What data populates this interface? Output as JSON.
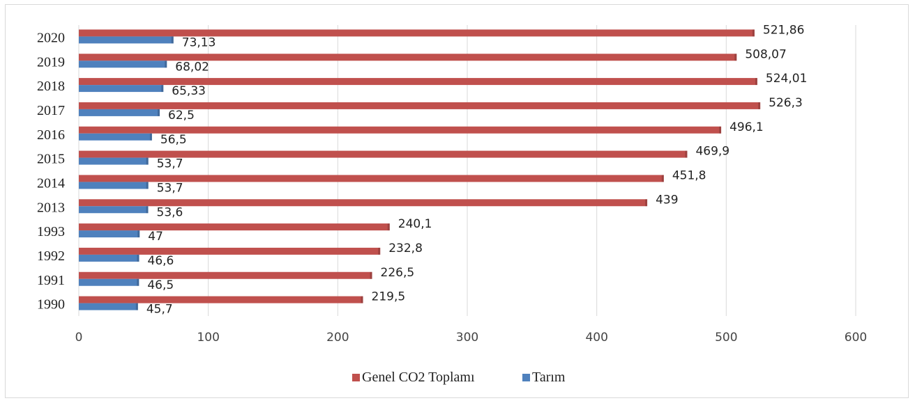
{
  "chart_data": {
    "type": "bar",
    "orientation": "horizontal",
    "categories": [
      "1990",
      "1991",
      "1992",
      "1993",
      "2013",
      "2014",
      "2015",
      "2016",
      "2017",
      "2018",
      "2019",
      "2020"
    ],
    "series": [
      {
        "name": "Genel CO2 Toplamı",
        "color": "#c0504d",
        "values": [
          219.5,
          226.5,
          232.8,
          240.1,
          439,
          451.8,
          469.9,
          496.1,
          526.3,
          524.01,
          508.07,
          521.86
        ],
        "labels": [
          "219,5",
          "226,5",
          "232,8",
          "240,1",
          "439",
          "451,8",
          "469,9",
          "496,1",
          "526,3",
          "524,01",
          "508,07",
          "521,86"
        ]
      },
      {
        "name": "Tarım",
        "color": "#4f81bd",
        "values": [
          45.7,
          46.5,
          46.6,
          47,
          53.6,
          53.7,
          53.7,
          56.5,
          62.5,
          65.33,
          68.02,
          73.13
        ],
        "labels": [
          "45,7",
          "46,5",
          "46,6",
          "47",
          "53,6",
          "53,7",
          "53,7",
          "56,5",
          "62,5",
          "65,33",
          "68,02",
          "73,13"
        ]
      }
    ],
    "xlim": [
      0,
      600
    ],
    "xticks": [
      "0",
      "100",
      "200",
      "300",
      "400",
      "500",
      "600"
    ],
    "grid": true,
    "legend_position": "bottom",
    "title": "",
    "xlabel": "",
    "ylabel": ""
  }
}
